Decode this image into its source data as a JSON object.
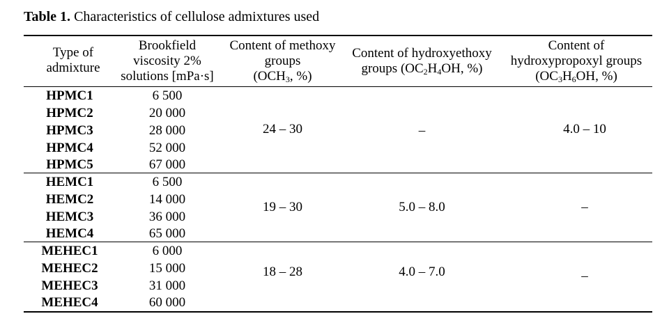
{
  "caption": {
    "label": "Table 1.",
    "text": " Characteristics of cellulose admixtures used"
  },
  "headers": {
    "type": [
      "Type of",
      "admixture"
    ],
    "viscosity": [
      "Brookfield",
      "viscosity 2%",
      "solutions [mPa·s]"
    ],
    "methoxy": {
      "l1": "Content of methoxy",
      "l2": "groups",
      "l3a": "(OCH",
      "sub1": "3",
      "l3b": ", %)"
    },
    "hydroxyethoxy": {
      "l1": "Content of hydroxyethoxy",
      "l2a": "groups (OC",
      "sub1": "2",
      "l2b": "H",
      "sub2": "4",
      "l2c": "OH, %)"
    },
    "hydroxypropoxyl": {
      "l1": "Content of",
      "l2": "hydroxypropoxyl groups",
      "l3a": "(OC",
      "sub1": "3",
      "l3b": "H",
      "sub2": "6",
      "l3c": "OH, %)"
    }
  },
  "groups": [
    {
      "rows": [
        {
          "name": "HPMC1",
          "viscosity": "6 500"
        },
        {
          "name": "HPMC2",
          "viscosity": "20 000"
        },
        {
          "name": "HPMC3",
          "viscosity": "28 000"
        },
        {
          "name": "HPMC4",
          "viscosity": "52 000"
        },
        {
          "name": "HPMC5",
          "viscosity": "67 000"
        }
      ],
      "methoxy": "24 – 30",
      "hydroxyethoxy": "–",
      "hydroxypropoxyl": "4.0 – 10"
    },
    {
      "rows": [
        {
          "name": "HEMC1",
          "viscosity": "6 500"
        },
        {
          "name": "HEMC2",
          "viscosity": "14 000"
        },
        {
          "name": "HEMC3",
          "viscosity": "36 000"
        },
        {
          "name": "HEMC4",
          "viscosity": "65 000"
        }
      ],
      "methoxy": "19 – 30",
      "hydroxyethoxy": "5.0 – 8.0",
      "hydroxypropoxyl": "–"
    },
    {
      "rows": [
        {
          "name": "MEHEC1",
          "viscosity": "6 000"
        },
        {
          "name": "MEHEC2",
          "viscosity": "15 000"
        },
        {
          "name": "MEHEC3",
          "viscosity": "31 000"
        },
        {
          "name": "MEHEC4",
          "viscosity": "60 000"
        }
      ],
      "methoxy": "18 – 28",
      "hydroxyethoxy": "4.0 – 7.0",
      "hydroxypropoxyl": "–"
    }
  ]
}
